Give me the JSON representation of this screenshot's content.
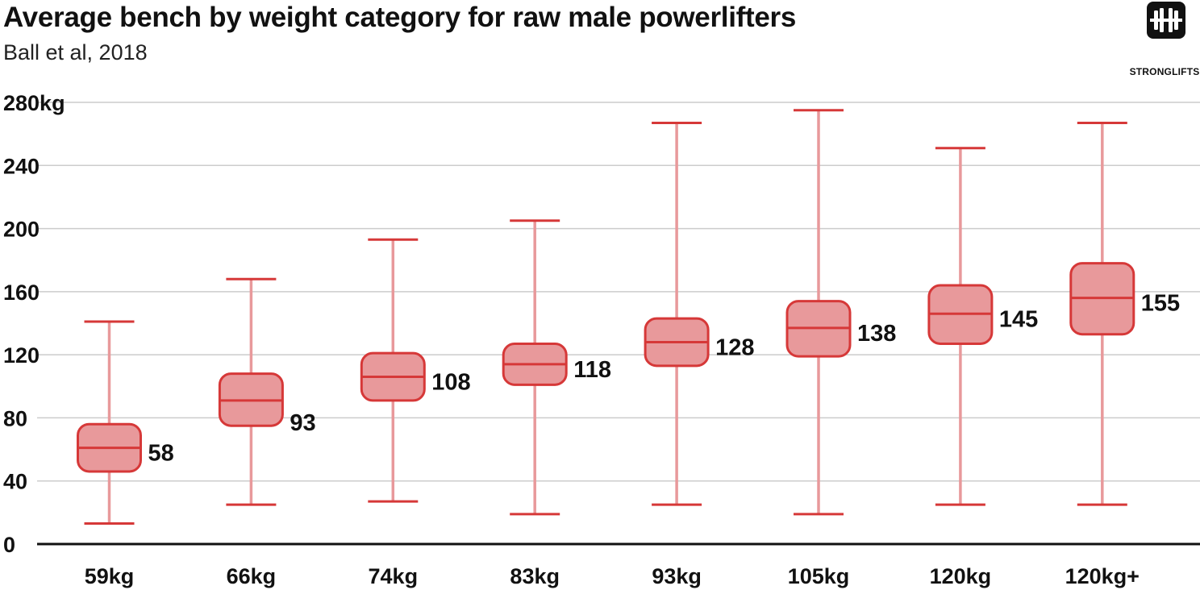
{
  "header": {
    "title": "Average bench by weight category for raw male powerlifters",
    "subtitle": "Ball et al, 2018"
  },
  "logo": {
    "text": "STRONGLIFTS",
    "icon": "barbell-icon"
  },
  "colors": {
    "box_fill": "#e8999b",
    "box_stroke": "#d63838",
    "whisker": "#e8999b",
    "cap": "#d63838",
    "grid": "#cccccc",
    "baseline": "#111111"
  },
  "chart_data": {
    "type": "boxplot",
    "title": "Average bench by weight category for raw male powerlifters",
    "subtitle": "Ball et al, 2018",
    "ylim": [
      0,
      280
    ],
    "yticks": [
      0,
      40,
      80,
      120,
      160,
      200,
      240,
      280
    ],
    "ytick_labels": [
      "0",
      "40",
      "80",
      "120",
      "160",
      "200",
      "240",
      "280kg"
    ],
    "grid": true,
    "categories": [
      "59kg",
      "66kg",
      "74kg",
      "83kg",
      "93kg",
      "105kg",
      "120kg",
      "120kg+"
    ],
    "series": [
      {
        "category": "59kg",
        "min": 13,
        "q1": 46,
        "median": 61,
        "q3": 76,
        "max": 141,
        "label": "58"
      },
      {
        "category": "66kg",
        "min": 25,
        "q1": 75,
        "median": 91,
        "q3": 108,
        "max": 168,
        "label": "93"
      },
      {
        "category": "74kg",
        "min": 27,
        "q1": 91,
        "median": 106,
        "q3": 121,
        "max": 193,
        "label": "108"
      },
      {
        "category": "83kg",
        "min": 19,
        "q1": 101,
        "median": 114,
        "q3": 127,
        "max": 205,
        "label": "118"
      },
      {
        "category": "93kg",
        "min": 25,
        "q1": 113,
        "median": 128,
        "q3": 143,
        "max": 267,
        "label": "128"
      },
      {
        "category": "105kg",
        "min": 19,
        "q1": 119,
        "median": 137,
        "q3": 154,
        "max": 275,
        "label": "138"
      },
      {
        "category": "120kg",
        "min": 25,
        "q1": 127,
        "median": 146,
        "q3": 164,
        "max": 251,
        "label": "145"
      },
      {
        "category": "120kg+",
        "min": 25,
        "q1": 133,
        "median": 156,
        "q3": 178,
        "max": 267,
        "label": "155"
      }
    ]
  }
}
